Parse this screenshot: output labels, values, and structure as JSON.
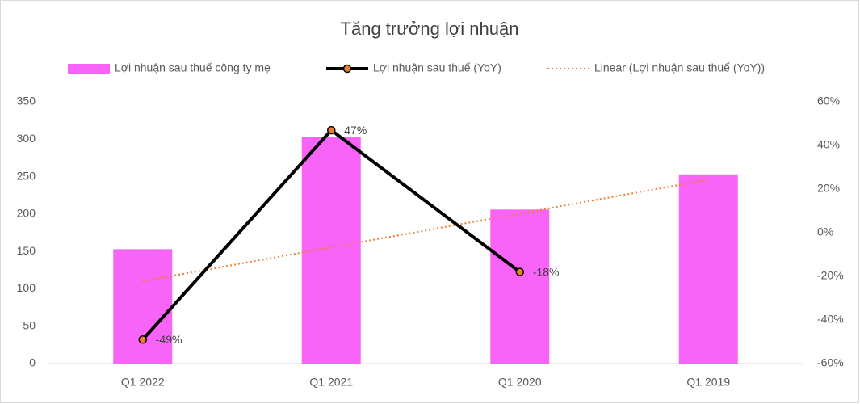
{
  "chart_data": {
    "type": "bar-line",
    "title": "Tăng trưởng lợi nhuận",
    "categories": [
      "Q1 2022",
      "Q1 2021",
      "Q1 2020",
      "Q1 2019"
    ],
    "series": [
      {
        "name": "Lợi nhuận sau thuế công ty mẹ",
        "type": "bar",
        "color": "#f864f8",
        "values": [
          153,
          303,
          206,
          253
        ]
      },
      {
        "name": "Lợi nhuận sau thuế (YoY)",
        "type": "line",
        "axis": "y2",
        "color": "#000000",
        "marker_color": "#ed7d31",
        "values": [
          -49,
          47,
          -18,
          null
        ],
        "value_labels": [
          "-49%",
          "47%",
          "-18%",
          null
        ]
      },
      {
        "name": "Linear (Lợi nhuận sau thuế (YoY))",
        "type": "trendline",
        "axis": "y2",
        "color": "#ed7d31",
        "values": [
          -22.2,
          -6.7,
          8.8,
          24.3
        ]
      }
    ],
    "ylim": [
      0,
      350
    ],
    "yticks": [
      0,
      50,
      100,
      150,
      200,
      250,
      300,
      350
    ],
    "y2lim": [
      -60,
      60
    ],
    "y2ticks": [
      {
        "value": -60,
        "label": "-60%"
      },
      {
        "value": -40,
        "label": "-40%"
      },
      {
        "value": -20,
        "label": "-20%"
      },
      {
        "value": 0,
        "label": "0%"
      },
      {
        "value": 20,
        "label": "20%"
      },
      {
        "value": 40,
        "label": "40%"
      },
      {
        "value": 60,
        "label": "60%"
      }
    ],
    "legend": "top",
    "grid": false
  }
}
